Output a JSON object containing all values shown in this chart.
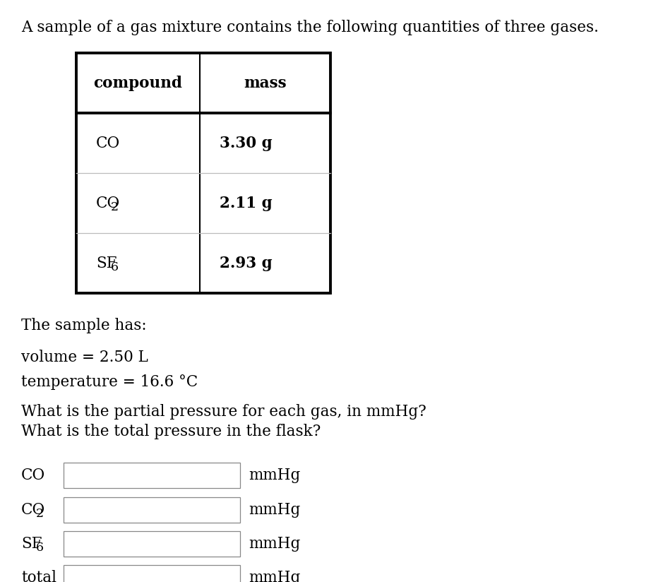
{
  "title": "A sample of a gas mixture contains the following quantities of three gases.",
  "table_headers": [
    "compound",
    "mass"
  ],
  "row_compounds_main": [
    "CO",
    "CO",
    "SF"
  ],
  "row_compounds_sub": [
    null,
    "2",
    "6"
  ],
  "row_masses": [
    "3.30 g",
    "2.11 g",
    "2.93 g"
  ],
  "sample_has": "The sample has:",
  "volume_line": "volume = 2.50 L",
  "temperature_line": "temperature = 16.6 °C",
  "question_line1": "What is the partial pressure for each gas, in mmHg?",
  "question_line2": "What is the total pressure in the flask?",
  "input_labels_main": [
    "CO",
    "CO",
    "SF",
    "total"
  ],
  "input_labels_sub": [
    null,
    "2",
    "6",
    null
  ],
  "unit_label": "mmHg",
  "background_color": "#ffffff",
  "text_color": "#000000",
  "font_size": 15.5,
  "bold_font_size": 15.5
}
